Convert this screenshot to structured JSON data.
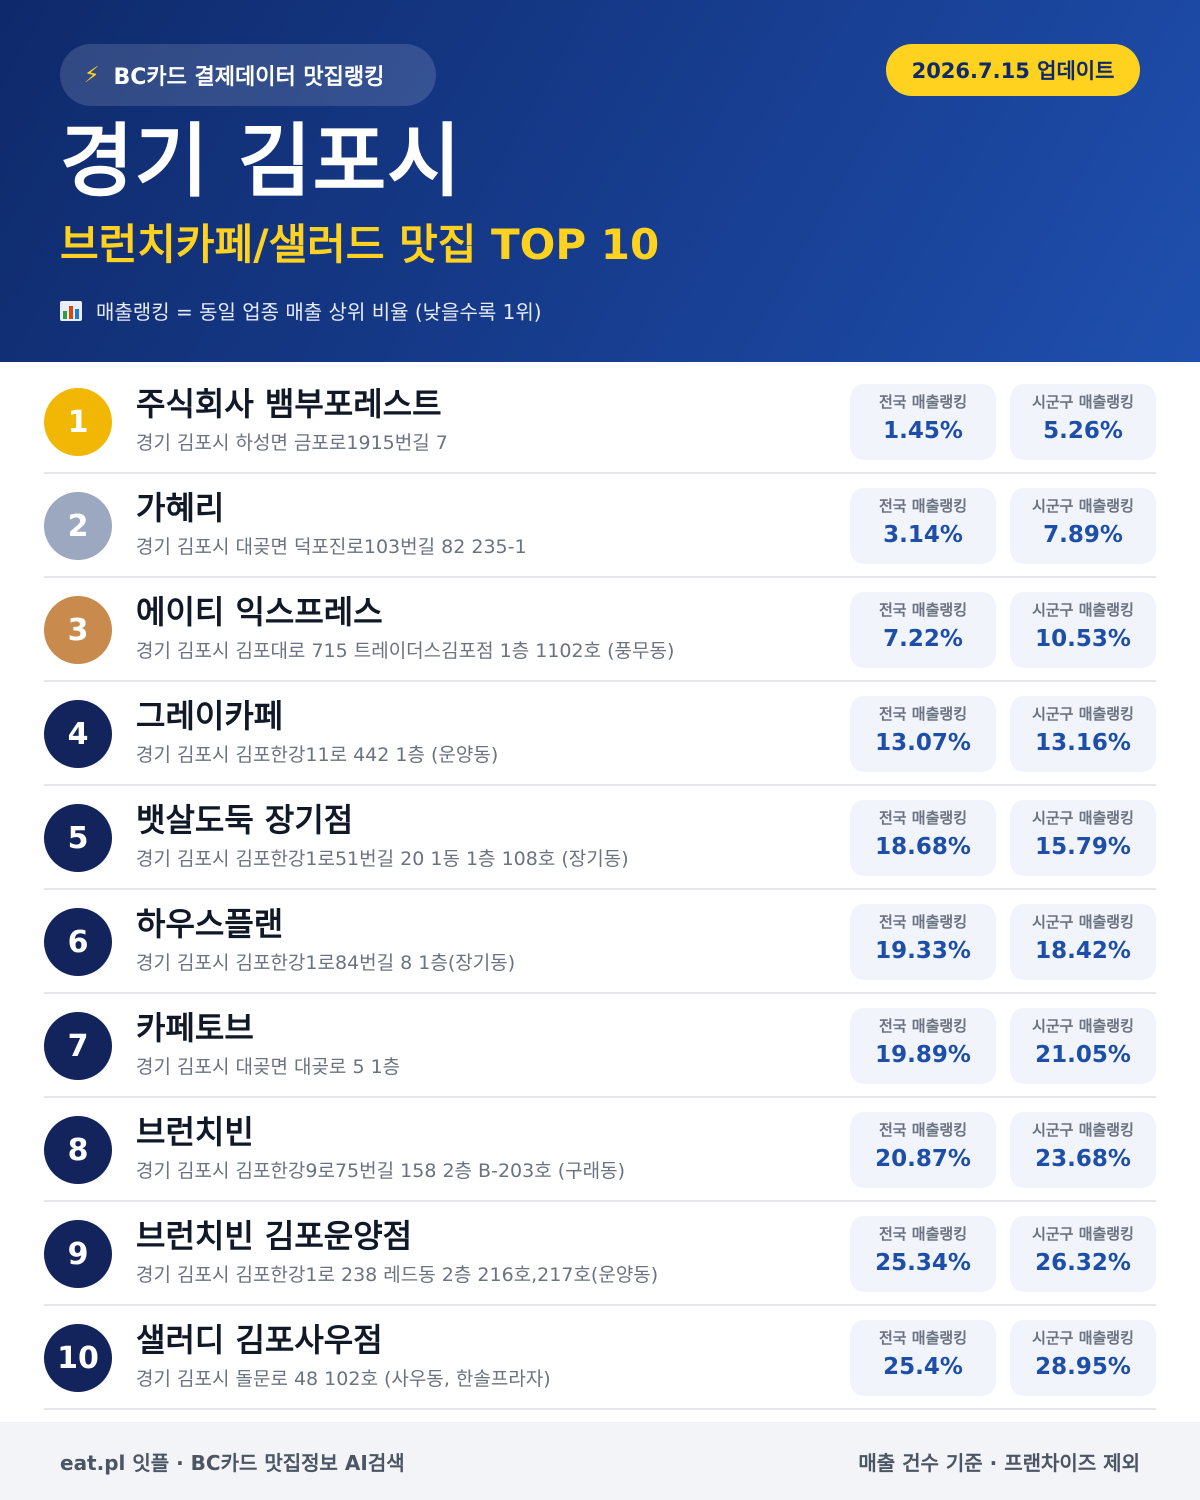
{
  "header": {
    "source_label": "BC카드 결제데이터 맛집랭킹",
    "bolt_icon": "⚡",
    "update_label": "2026.7.15 업데이트",
    "city": "경기 김포시",
    "subtitle": "브런치카페/샐러드 맛집 TOP 10",
    "note": "매출랭킹 = 동일 업종 매출 상위 비율 (낮을수록 1위)"
  },
  "stat_labels": {
    "national": "전국 매출랭킹",
    "local": "시군구 매출랭킹"
  },
  "restaurants": [
    {
      "rank": "1",
      "name": "주식회사 뱀부포레스트",
      "address": "경기 김포시 하성면 금포로1915번길 7",
      "national": "1.45%",
      "local": "5.26%"
    },
    {
      "rank": "2",
      "name": "가혜리",
      "address": "경기 김포시 대곶면 덕포진로103번길 82 235-1",
      "national": "3.14%",
      "local": "7.89%"
    },
    {
      "rank": "3",
      "name": "에이티 익스프레스",
      "address": "경기 김포시 김포대로 715 트레이더스김포점 1층 1102호 (풍무동)",
      "national": "7.22%",
      "local": "10.53%"
    },
    {
      "rank": "4",
      "name": "그레이카페",
      "address": "경기 김포시 김포한강11로 442 1층 (운양동)",
      "national": "13.07%",
      "local": "13.16%"
    },
    {
      "rank": "5",
      "name": "뱃살도둑 장기점",
      "address": "경기 김포시 김포한강1로51번길 20 1동 1층 108호 (장기동)",
      "national": "18.68%",
      "local": "15.79%"
    },
    {
      "rank": "6",
      "name": "하우스플랜",
      "address": "경기 김포시 김포한강1로84번길 8 1층(장기동)",
      "national": "19.33%",
      "local": "18.42%"
    },
    {
      "rank": "7",
      "name": "카페토브",
      "address": "경기 김포시 대곶면 대곶로 5 1층",
      "national": "19.89%",
      "local": "21.05%"
    },
    {
      "rank": "8",
      "name": "브런치빈",
      "address": "경기 김포시 김포한강9로75번길 158 2층 B-203호 (구래동)",
      "national": "20.87%",
      "local": "23.68%"
    },
    {
      "rank": "9",
      "name": "브런치빈 김포운양점",
      "address": "경기 김포시 김포한강1로 238 레드동 2층 216호,217호(운양동)",
      "national": "25.34%",
      "local": "26.32%"
    },
    {
      "rank": "10",
      "name": "샐러디 김포사우점",
      "address": "경기 김포시 돌문로 48 102호 (사우동, 한솔프라자)",
      "national": "25.4%",
      "local": "28.95%"
    }
  ],
  "footer": {
    "left": "eat.pl 잇플 · BC카드 맛집정보 AI검색",
    "right": "매출 건수 기준 · 프랜차이즈 제외"
  },
  "colors": {
    "header_dark": "#0f2a6b",
    "header_light": "#1f4fae",
    "accent_yellow": "#ffd21f",
    "rank_gold": "#f2b705",
    "rank_silver": "#9ba8bf",
    "rank_bronze": "#c98a4d",
    "rank_default": "#13245c",
    "stat_value": "#1d4ea8"
  }
}
